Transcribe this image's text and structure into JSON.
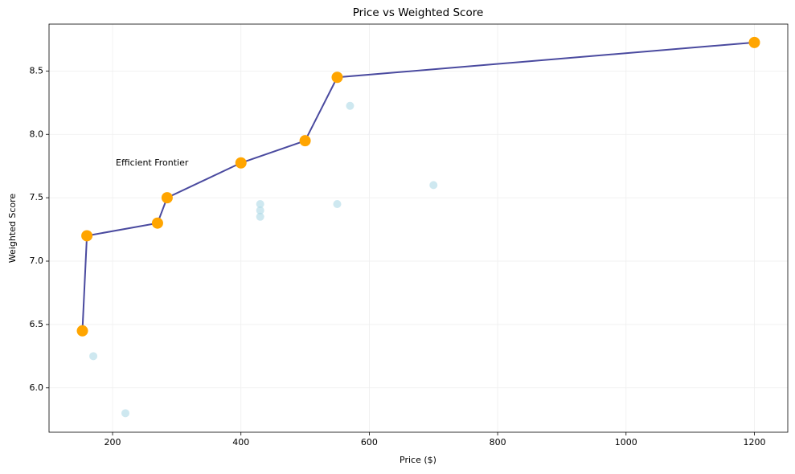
{
  "chart_data": {
    "type": "scatter",
    "title": "Price vs Weighted Score",
    "x_label": "Price ($)",
    "y_label": "Weighted Score",
    "annotation": "Efficient Frontier",
    "series": [
      {
        "color": "#add8e6",
        "x": [
          170,
          220,
          430,
          430,
          430,
          550,
          570,
          700
        ],
        "values": [
          6.25,
          5.8,
          7.45,
          7.4,
          7.35,
          7.45,
          8.225,
          7.6
        ]
      },
      {
        "color": "#ffa500",
        "line_color": "#4a4a9f",
        "line": true,
        "x": [
          153,
          160,
          270,
          285,
          400,
          500,
          550,
          1200
        ],
        "values": [
          6.45,
          7.2,
          7.3,
          7.5,
          7.775,
          7.95,
          8.45,
          8.725
        ]
      }
    ],
    "xlim": [
      101,
      1252
    ],
    "xticks": [
      200,
      400,
      600,
      800,
      1000,
      1200
    ],
    "ylim": [
      5.65,
      8.87
    ],
    "yticks": [
      {
        "value": 6,
        "label": "6.0"
      },
      6.5,
      {
        "value": 7,
        "label": "7.0"
      },
      7.5,
      {
        "value": 8,
        "label": "8.0"
      },
      8.5
    ],
    "grid": true
  }
}
